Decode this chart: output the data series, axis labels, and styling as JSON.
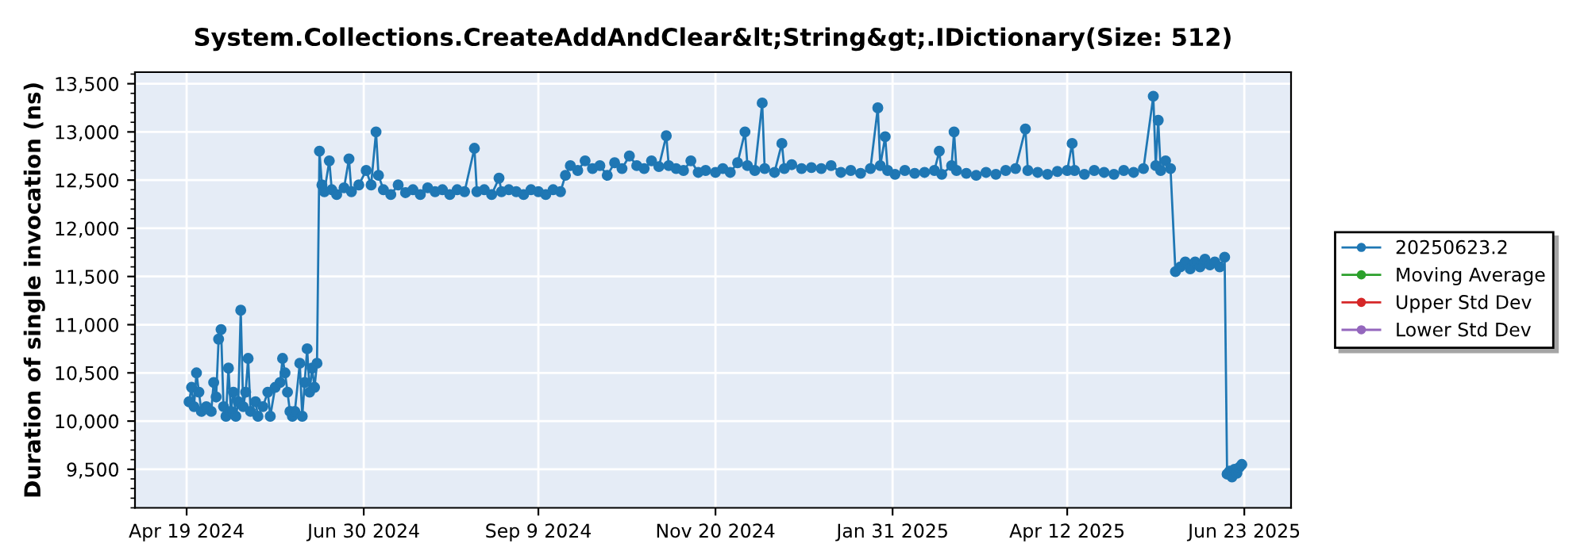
{
  "chart_data": {
    "type": "line",
    "title": "System.Collections.CreateAddAndClear&lt;String&gt;.IDictionary(Size: 512)",
    "ylabel": "Duration of single invocation (ns)",
    "x": [
      "2024-04-20",
      "2024-04-21",
      "2024-04-22",
      "2024-04-23",
      "2024-04-24",
      "2024-04-25",
      "2024-04-27",
      "2024-04-29",
      "2024-04-30",
      "2024-05-01",
      "2024-05-02",
      "2024-05-03",
      "2024-05-04",
      "2024-05-05",
      "2024-05-06",
      "2024-05-07",
      "2024-05-08",
      "2024-05-09",
      "2024-05-10",
      "2024-05-11",
      "2024-05-12",
      "2024-05-13",
      "2024-05-14",
      "2024-05-15",
      "2024-05-17",
      "2024-05-18",
      "2024-05-20",
      "2024-05-22",
      "2024-05-23",
      "2024-05-25",
      "2024-05-27",
      "2024-05-28",
      "2024-05-29",
      "2024-05-30",
      "2024-05-31",
      "2024-06-01",
      "2024-06-02",
      "2024-06-04",
      "2024-06-05",
      "2024-06-06",
      "2024-06-07",
      "2024-06-08",
      "2024-06-09",
      "2024-06-10",
      "2024-06-11",
      "2024-06-12",
      "2024-06-13",
      "2024-06-14",
      "2024-06-16",
      "2024-06-17",
      "2024-06-19",
      "2024-06-22",
      "2024-06-24",
      "2024-06-25",
      "2024-06-28",
      "2024-07-01",
      "2024-07-03",
      "2024-07-05",
      "2024-07-06",
      "2024-07-08",
      "2024-07-11",
      "2024-07-14",
      "2024-07-17",
      "2024-07-20",
      "2024-07-23",
      "2024-07-26",
      "2024-07-29",
      "2024-08-01",
      "2024-08-04",
      "2024-08-07",
      "2024-08-10",
      "2024-08-14",
      "2024-08-15",
      "2024-08-18",
      "2024-08-21",
      "2024-08-24",
      "2024-08-25",
      "2024-08-28",
      "2024-08-31",
      "2024-09-03",
      "2024-09-06",
      "2024-09-09",
      "2024-09-12",
      "2024-09-15",
      "2024-09-18",
      "2024-09-20",
      "2024-09-22",
      "2024-09-25",
      "2024-09-28",
      "2024-10-01",
      "2024-10-04",
      "2024-10-07",
      "2024-10-10",
      "2024-10-13",
      "2024-10-16",
      "2024-10-19",
      "2024-10-22",
      "2024-10-25",
      "2024-10-28",
      "2024-10-31",
      "2024-11-01",
      "2024-11-04",
      "2024-11-07",
      "2024-11-10",
      "2024-11-13",
      "2024-11-16",
      "2024-11-20",
      "2024-11-23",
      "2024-11-26",
      "2024-11-29",
      "2024-12-02",
      "2024-12-03",
      "2024-12-06",
      "2024-12-09",
      "2024-12-10",
      "2024-12-14",
      "2024-12-17",
      "2024-12-18",
      "2024-12-21",
      "2024-12-25",
      "2024-12-29",
      "2025-01-02",
      "2025-01-06",
      "2025-01-10",
      "2025-01-14",
      "2025-01-18",
      "2025-01-22",
      "2025-01-25",
      "2025-01-26",
      "2025-01-28",
      "2025-01-29",
      "2025-02-01",
      "2025-02-05",
      "2025-02-09",
      "2025-02-13",
      "2025-02-17",
      "2025-02-19",
      "2025-02-20",
      "2025-02-24",
      "2025-02-25",
      "2025-02-26",
      "2025-03-02",
      "2025-03-06",
      "2025-03-10",
      "2025-03-14",
      "2025-03-18",
      "2025-03-22",
      "2025-03-26",
      "2025-03-27",
      "2025-03-31",
      "2025-04-04",
      "2025-04-08",
      "2025-04-12",
      "2025-04-14",
      "2025-04-15",
      "2025-04-19",
      "2025-04-23",
      "2025-04-27",
      "2025-05-01",
      "2025-05-05",
      "2025-05-09",
      "2025-05-13",
      "2025-05-17",
      "2025-05-18",
      "2025-05-19",
      "2025-05-20",
      "2025-05-22",
      "2025-05-24",
      "2025-05-26",
      "2025-05-28",
      "2025-05-30",
      "2025-06-01",
      "2025-06-03",
      "2025-06-05",
      "2025-06-07",
      "2025-06-09",
      "2025-06-11",
      "2025-06-13",
      "2025-06-15",
      "2025-06-16",
      "2025-06-17",
      "2025-06-18",
      "2025-06-19",
      "2025-06-20",
      "2025-06-21",
      "2025-06-22"
    ],
    "series": [
      {
        "name": "20250623.2",
        "color": "#1f77b4",
        "values": [
          10200,
          10350,
          10150,
          10500,
          10300,
          10100,
          10150,
          10100,
          10400,
          10250,
          10850,
          10950,
          10150,
          10050,
          10550,
          10100,
          10300,
          10050,
          10200,
          11150,
          10150,
          10300,
          10650,
          10100,
          10200,
          10050,
          10150,
          10300,
          10050,
          10350,
          10400,
          10650,
          10500,
          10300,
          10100,
          10050,
          10100,
          10600,
          10050,
          10400,
          10750,
          10300,
          10550,
          10350,
          10600,
          12800,
          12450,
          12380,
          12700,
          12400,
          12350,
          12420,
          12720,
          12380,
          12450,
          12600,
          12450,
          13000,
          12550,
          12400,
          12350,
          12450,
          12370,
          12400,
          12350,
          12420,
          12380,
          12400,
          12350,
          12400,
          12380,
          12830,
          12380,
          12400,
          12350,
          12520,
          12380,
          12400,
          12380,
          12350,
          12400,
          12380,
          12350,
          12400,
          12380,
          12550,
          12650,
          12600,
          12700,
          12620,
          12650,
          12550,
          12680,
          12620,
          12750,
          12650,
          12620,
          12700,
          12640,
          12960,
          12650,
          12620,
          12600,
          12700,
          12580,
          12600,
          12580,
          12620,
          12580,
          12680,
          13000,
          12650,
          12600,
          13300,
          12620,
          12580,
          12880,
          12620,
          12660,
          12620,
          12630,
          12620,
          12650,
          12580,
          12600,
          12570,
          12620,
          13250,
          12650,
          12950,
          12600,
          12560,
          12600,
          12570,
          12580,
          12600,
          12800,
          12560,
          12650,
          13000,
          12600,
          12570,
          12550,
          12580,
          12560,
          12600,
          12620,
          13030,
          12600,
          12580,
          12560,
          12590,
          12600,
          12880,
          12600,
          12560,
          12600,
          12580,
          12560,
          12600,
          12580,
          12620,
          13370,
          12650,
          13120,
          12600,
          12700,
          12620,
          11550,
          11600,
          11650,
          11580,
          11650,
          11600,
          11680,
          11620,
          11650,
          11600,
          11700,
          9450,
          9480,
          9420,
          9500,
          9460,
          9520,
          9550
        ]
      },
      {
        "name": "Moving Average",
        "color": "#2ca02c",
        "values": [
          null,
          null,
          null,
          null,
          null,
          null,
          null,
          null,
          null,
          null,
          null,
          null,
          null,
          null,
          null,
          null,
          null,
          null,
          null,
          null,
          null,
          null,
          null,
          null,
          null,
          null,
          null,
          null,
          null,
          null,
          null,
          null,
          null,
          null,
          null,
          null,
          null,
          null,
          null,
          null,
          null,
          null,
          null,
          null,
          null,
          null,
          null,
          null,
          null,
          null,
          null,
          null,
          null,
          null,
          null,
          null,
          null,
          null,
          null,
          null,
          null,
          null,
          null,
          null,
          null,
          null,
          null,
          null,
          null,
          null,
          null,
          null,
          null,
          null,
          null,
          null,
          null,
          null,
          null,
          null,
          null,
          null,
          null,
          null,
          null,
          null,
          null,
          null,
          null,
          null,
          null,
          null,
          null,
          null,
          null,
          null,
          null,
          null,
          null,
          null,
          null,
          null,
          null,
          null,
          null,
          null,
          null,
          null,
          null,
          null,
          null,
          null,
          null,
          null,
          null,
          null,
          null,
          null,
          null,
          null,
          null,
          null,
          null,
          null,
          null,
          null,
          null,
          null,
          null,
          null,
          null,
          null,
          null,
          null,
          null,
          null,
          null,
          null,
          null,
          null,
          null,
          null,
          null,
          null,
          null,
          null,
          null,
          null,
          null,
          null,
          null,
          null,
          null,
          null,
          null,
          null,
          null,
          null,
          null,
          null,
          null,
          null,
          null,
          null,
          null,
          null,
          null,
          null,
          null,
          null,
          null,
          null,
          null,
          null,
          null,
          null,
          null,
          null,
          null,
          null,
          null,
          null,
          null,
          null,
          null,
          null
        ]
      },
      {
        "name": "Upper Std Dev",
        "color": "#d62728",
        "values": [
          null,
          null,
          null,
          null,
          null,
          null,
          null,
          null,
          null,
          null,
          null,
          null,
          null,
          null,
          null,
          null,
          null,
          null,
          null,
          null,
          null,
          null,
          null,
          null,
          null,
          null,
          null,
          null,
          null,
          null,
          null,
          null,
          null,
          null,
          null,
          null,
          null,
          null,
          null,
          null,
          null,
          null,
          null,
          null,
          null,
          null,
          null,
          null,
          null,
          null,
          null,
          null,
          null,
          null,
          null,
          null,
          null,
          null,
          null,
          null,
          null,
          null,
          null,
          null,
          null,
          null,
          null,
          null,
          null,
          null,
          null,
          null,
          null,
          null,
          null,
          null,
          null,
          null,
          null,
          null,
          null,
          null,
          null,
          null,
          null,
          null,
          null,
          null,
          null,
          null,
          null,
          null,
          null,
          null,
          null,
          null,
          null,
          null,
          null,
          null,
          null,
          null,
          null,
          null,
          null,
          null,
          null,
          null,
          null,
          null,
          null,
          null,
          null,
          null,
          null,
          null,
          null,
          null,
          null,
          null,
          null,
          null,
          null,
          null,
          null,
          null,
          null,
          null,
          null,
          null,
          null,
          null,
          null,
          null,
          null,
          null,
          null,
          null,
          null,
          null,
          null,
          null,
          null,
          null,
          null,
          null,
          null,
          null,
          null,
          null,
          null,
          null,
          null,
          null,
          null,
          null,
          null,
          null,
          null,
          null,
          null,
          null,
          null,
          null,
          null,
          null,
          null,
          null,
          null,
          null,
          null,
          null,
          null,
          null,
          null,
          null,
          null,
          null,
          null,
          null,
          null,
          null,
          null,
          null,
          null,
          null
        ]
      },
      {
        "name": "Lower Std Dev",
        "color": "#9467bd",
        "values": [
          null,
          null,
          null,
          null,
          null,
          null,
          null,
          null,
          null,
          null,
          null,
          null,
          null,
          null,
          null,
          null,
          null,
          null,
          null,
          null,
          null,
          null,
          null,
          null,
          null,
          null,
          null,
          null,
          null,
          null,
          null,
          null,
          null,
          null,
          null,
          null,
          null,
          null,
          null,
          null,
          null,
          null,
          null,
          null,
          null,
          null,
          null,
          null,
          null,
          null,
          null,
          null,
          null,
          null,
          null,
          null,
          null,
          null,
          null,
          null,
          null,
          null,
          null,
          null,
          null,
          null,
          null,
          null,
          null,
          null,
          null,
          null,
          null,
          null,
          null,
          null,
          null,
          null,
          null,
          null,
          null,
          null,
          null,
          null,
          null,
          null,
          null,
          null,
          null,
          null,
          null,
          null,
          null,
          null,
          null,
          null,
          null,
          null,
          null,
          null,
          null,
          null,
          null,
          null,
          null,
          null,
          null,
          null,
          null,
          null,
          null,
          null,
          null,
          null,
          null,
          null,
          null,
          null,
          null,
          null,
          null,
          null,
          null,
          null,
          null,
          null,
          null,
          null,
          null,
          null,
          null,
          null,
          null,
          null,
          null,
          null,
          null,
          null,
          null,
          null,
          null,
          null,
          null,
          null,
          null,
          null,
          null,
          null,
          null,
          null,
          null,
          null,
          null,
          null,
          null,
          null,
          null,
          null,
          null,
          null,
          null,
          null,
          null,
          null,
          null,
          null,
          null,
          null,
          null,
          null,
          null,
          null,
          null,
          null,
          null,
          null,
          null,
          null,
          null,
          null,
          null,
          null,
          null,
          null,
          null,
          null
        ]
      }
    ],
    "xlim": [
      "2024-03-29",
      "2025-07-12"
    ],
    "xticks": [
      {
        "value": "2024-04-19",
        "label": "Apr 19 2024"
      },
      {
        "value": "2024-06-30",
        "label": "Jun 30 2024"
      },
      {
        "value": "2024-09-09",
        "label": "Sep 9 2024"
      },
      {
        "value": "2024-11-20",
        "label": "Nov 20 2024"
      },
      {
        "value": "2025-01-31",
        "label": "Jan 31 2025"
      },
      {
        "value": "2025-04-12",
        "label": "Apr 12 2025"
      },
      {
        "value": "2025-06-23",
        "label": "Jun 23 2025"
      }
    ],
    "ylim": [
      9100,
      13620
    ],
    "yticks": [
      {
        "value": 9500,
        "label": "9,500"
      },
      {
        "value": 10000,
        "label": "10,000"
      },
      {
        "value": 10500,
        "label": "10,500"
      },
      {
        "value": 11000,
        "label": "11,000"
      },
      {
        "value": 11500,
        "label": "11,500"
      },
      {
        "value": 12000,
        "label": "12,000"
      },
      {
        "value": 12500,
        "label": "12,500"
      },
      {
        "value": 13000,
        "label": "13,000"
      },
      {
        "value": 13500,
        "label": "13,500"
      }
    ],
    "grid": true,
    "legend": "right",
    "marker": "circle",
    "line_style": "solid"
  }
}
